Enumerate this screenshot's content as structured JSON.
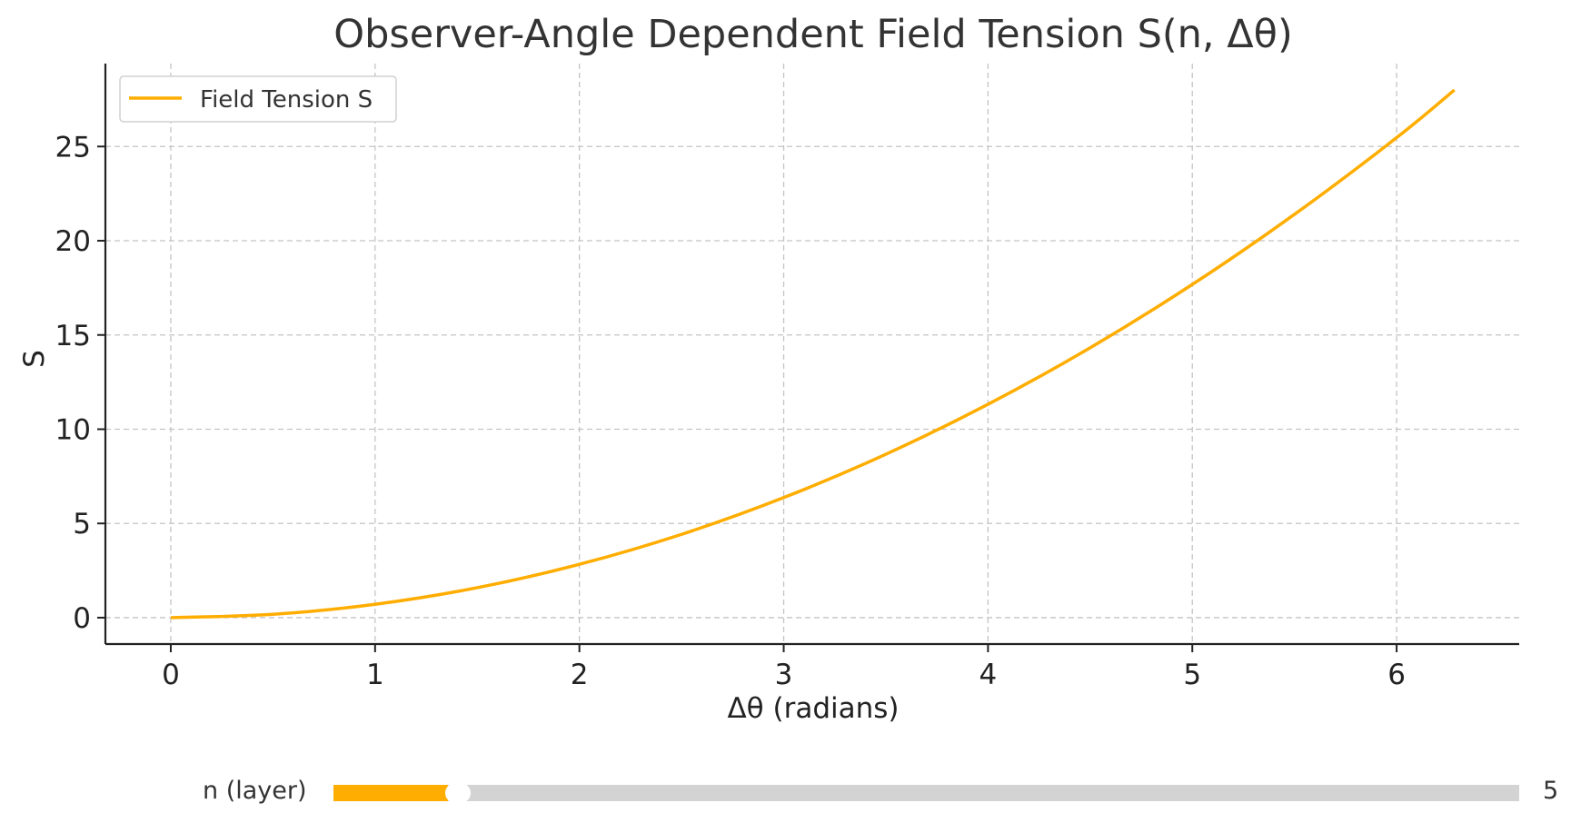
{
  "chart_data": {
    "type": "line",
    "title": "Observer-Angle Dependent Field Tension S(n, Δθ)",
    "xlabel": "Δθ (radians)",
    "ylabel": "S",
    "xlim": [
      -0.32,
      6.6
    ],
    "ylim": [
      -1.4,
      29.4
    ],
    "xticks": [
      0,
      1,
      2,
      3,
      4,
      5,
      6
    ],
    "yticks": [
      0,
      5,
      10,
      15,
      20,
      25
    ],
    "grid": true,
    "legend": "top-left",
    "series": [
      {
        "name": "Field Tension S",
        "color": "#ffad00",
        "x": [
          0,
          0.5,
          1,
          1.5,
          2,
          2.5,
          3,
          3.5,
          4,
          4.5,
          5,
          5.5,
          6,
          6.283
        ],
        "y": [
          0,
          0.18,
          0.71,
          1.59,
          2.83,
          4.42,
          6.37,
          8.67,
          11.32,
          14.32,
          17.68,
          21.4,
          25.47,
          28.0
        ]
      }
    ]
  },
  "slider": {
    "label": "n (layer)",
    "max_label": "5",
    "value_fraction": 0.092,
    "fill_color": "#ffad00"
  }
}
